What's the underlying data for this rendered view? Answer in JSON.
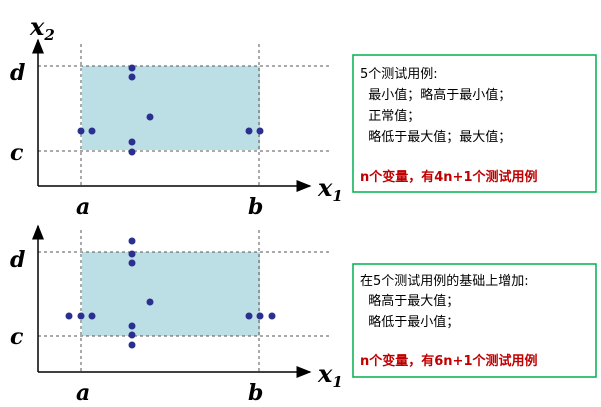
{
  "top_panel": {
    "y_axis_label": "x",
    "y_axis_sub": "2",
    "x_axis_label": "x",
    "x_axis_sub": "1",
    "tick_d": "d",
    "tick_c": "c",
    "tick_a": "a",
    "tick_b": "b",
    "note": {
      "lines": [
        "5个测试用例:",
        "  最小值；略高于最小值；",
        "  正常值；",
        "  略低于最大值；最大值；"
      ],
      "highlight": "n个变量，有4n+1个测试用例"
    }
  },
  "bottom_panel": {
    "x_axis_label": "x",
    "x_axis_sub": "1",
    "tick_d": "d",
    "tick_c": "c",
    "tick_a": "a",
    "tick_b": "b",
    "note": {
      "lines": [
        "在5个测试用例的基础上增加:",
        "  略高于最大值；",
        "  略低于最小值；"
      ],
      "highlight": "n个变量，有6n+1个测试用例"
    }
  },
  "colors": {
    "region_fill": "#bcdfe6",
    "point": "#2b2f8f",
    "highlight": "#c00000"
  }
}
